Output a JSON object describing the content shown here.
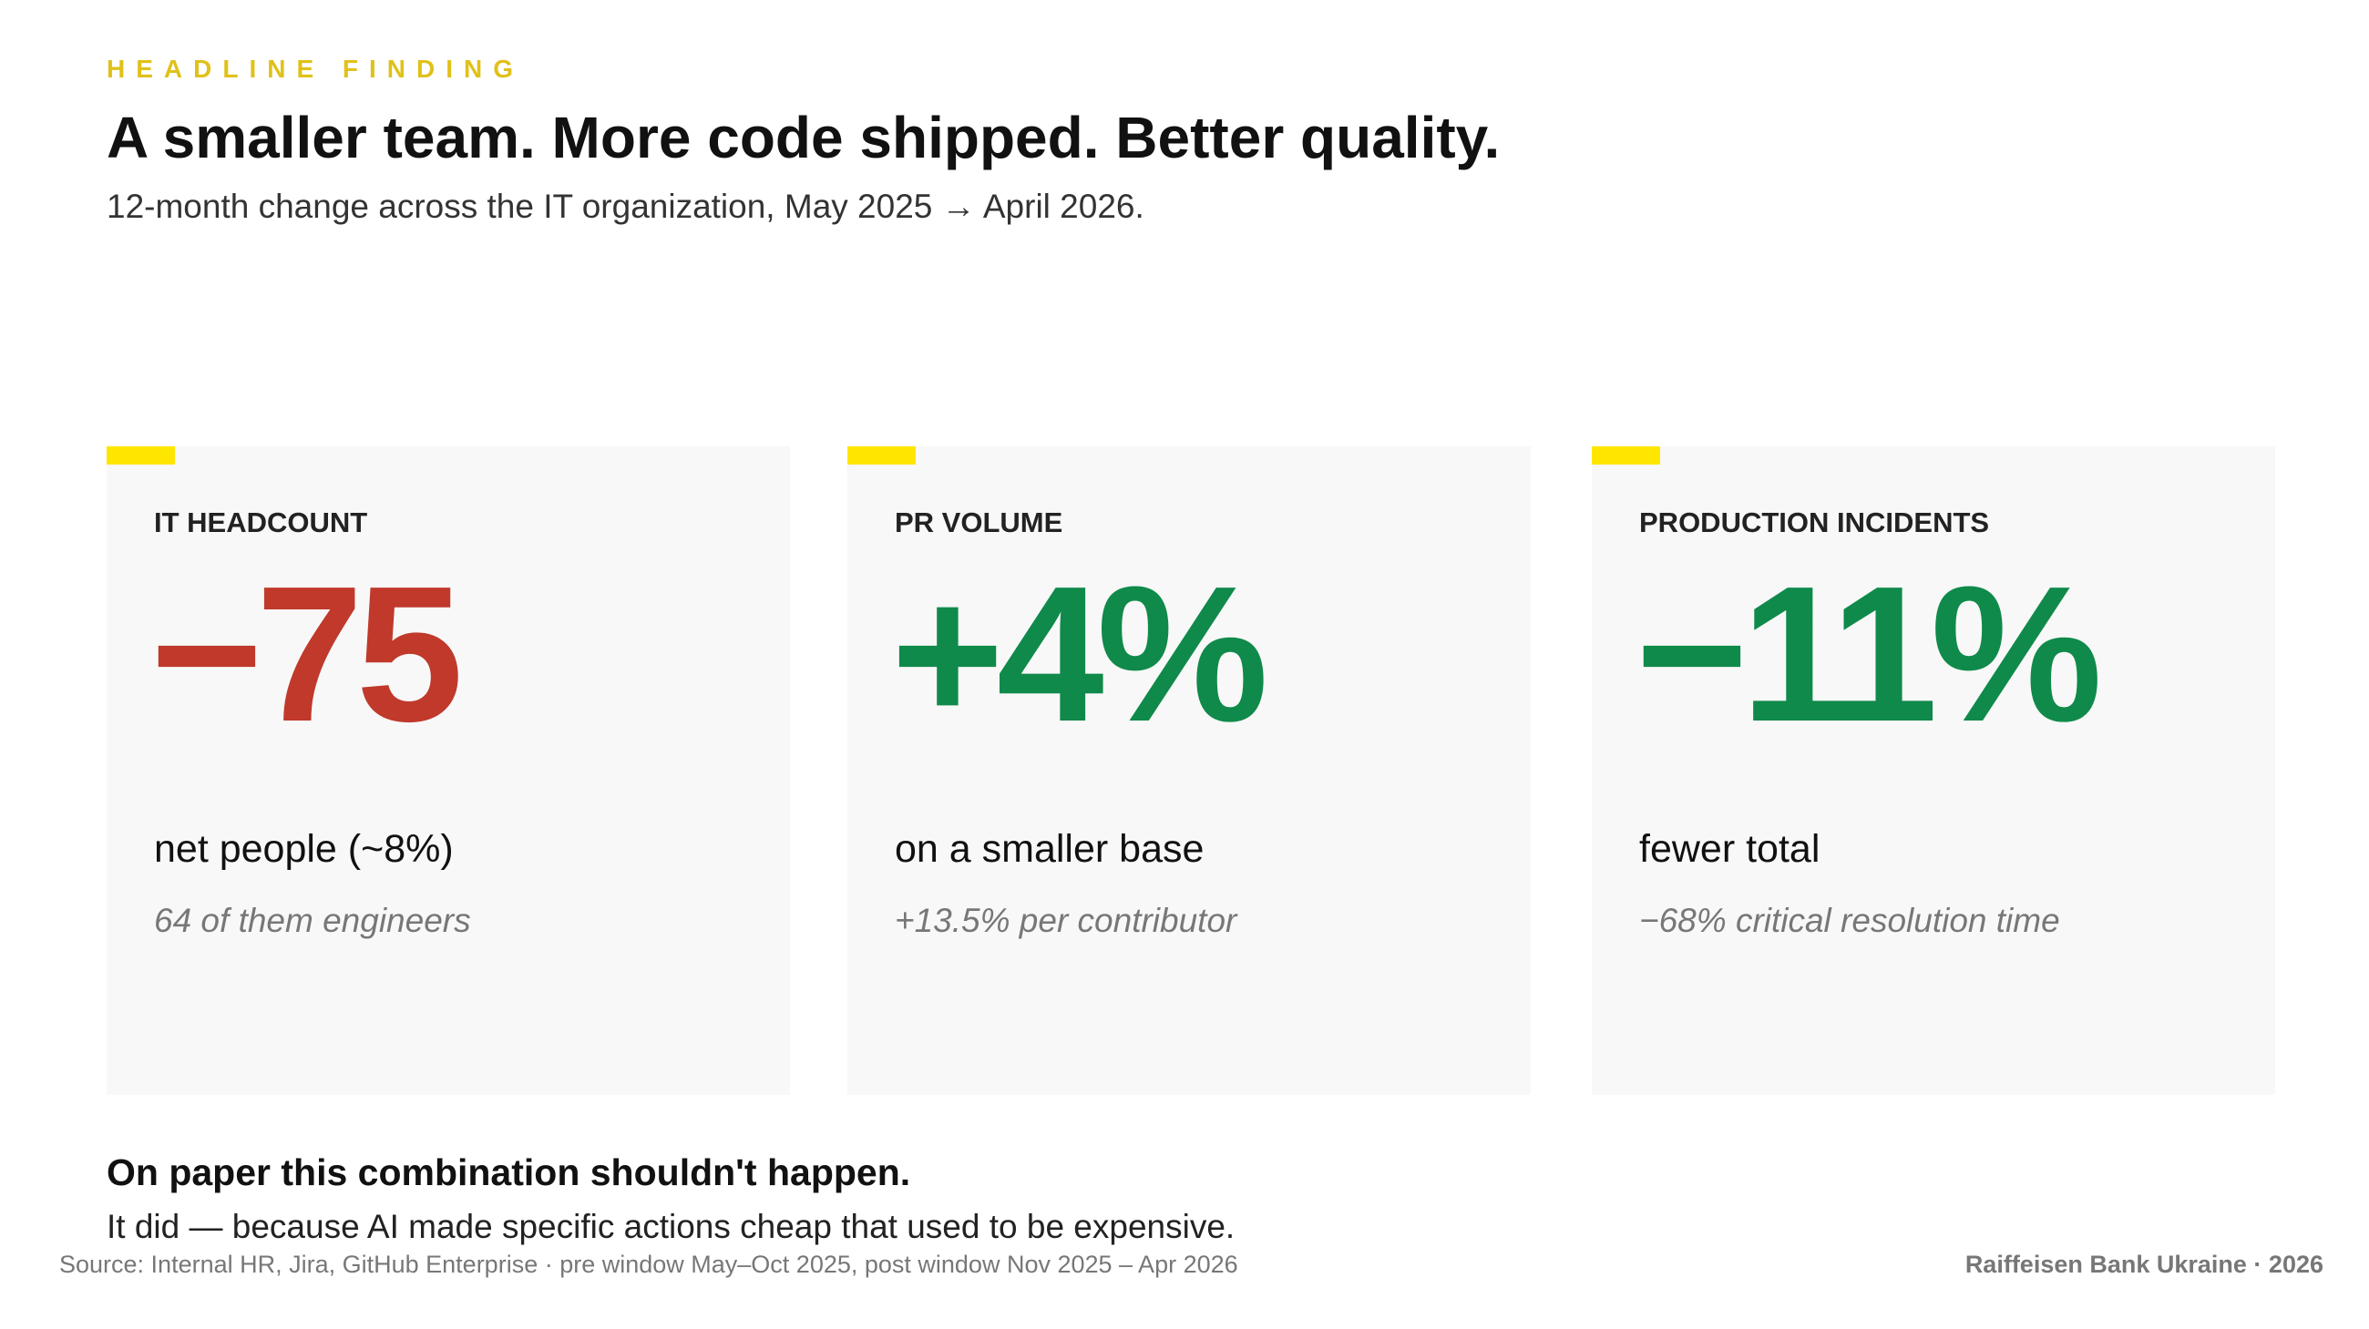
{
  "header": {
    "kicker": "HEADLINE FINDING",
    "title": "A smaller team. More code shipped. Better quality.",
    "subtitle": "12-month change across the IT organization, May 2025 → April 2026."
  },
  "cards": [
    {
      "label": "IT HEADCOUNT",
      "value": "−75",
      "color": "#c0392b",
      "description": "net people (~8%)",
      "note": "64 of them engineers"
    },
    {
      "label": "PR VOLUME",
      "value": "+4%",
      "color": "#0f8a4a",
      "description": "on a smaller base",
      "note": "+13.5% per contributor"
    },
    {
      "label": "PRODUCTION INCIDENTS",
      "value": "−11%",
      "color": "#0f8a4a",
      "description": "fewer total",
      "note": "−68% critical resolution time"
    }
  ],
  "conclusion": {
    "heading": "On paper this combination shouldn't happen.",
    "text": "It did — because AI made specific actions cheap that used to be expensive."
  },
  "footer": {
    "source": "Source: Internal HR, Jira, GitHub Enterprise · pre window May–Oct 2025, post window Nov 2025 – Apr 2026",
    "brand": "Raiffeisen Bank Ukraine · 2026"
  }
}
